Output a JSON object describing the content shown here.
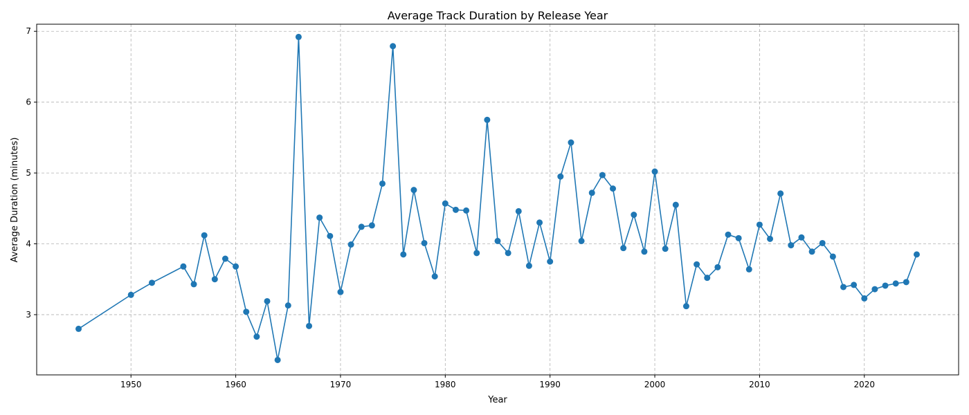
{
  "chart_data": {
    "type": "line",
    "title": "Average Track Duration by Release Year",
    "xlabel": "Year",
    "ylabel": "Average Duration (minutes)",
    "xlim": [
      1941,
      2029
    ],
    "ylim": [
      2.15,
      7.1
    ],
    "xticks": [
      1950,
      1960,
      1970,
      1980,
      1990,
      2000,
      2010,
      2020
    ],
    "yticks": [
      3,
      4,
      5,
      6,
      7
    ],
    "grid": true,
    "marker": "circle",
    "color": "#1f77b4",
    "series": [
      {
        "x": [
          1945,
          1950,
          1952,
          1955,
          1956,
          1957,
          1958,
          1959,
          1960,
          1961,
          1962,
          1963,
          1964,
          1965,
          1966,
          1967,
          1968,
          1969,
          1970,
          1971,
          1972,
          1973,
          1974,
          1975,
          1976,
          1977,
          1978,
          1979,
          1980,
          1981,
          1982,
          1983,
          1984,
          1985,
          1986,
          1987,
          1988,
          1989,
          1990,
          1991,
          1992,
          1993,
          1994,
          1995,
          1996,
          1997,
          1998,
          1999,
          2000,
          2001,
          2002,
          2003,
          2004,
          2005,
          2006,
          2007,
          2008,
          2009,
          2010,
          2011,
          2012,
          2013,
          2014,
          2015,
          2016,
          2017,
          2018,
          2019,
          2020,
          2021,
          2022,
          2023,
          2024,
          2025
        ],
        "y": [
          2.8,
          3.28,
          3.45,
          3.68,
          3.43,
          4.12,
          3.5,
          3.79,
          3.68,
          3.04,
          2.69,
          3.19,
          2.36,
          3.13,
          6.92,
          2.84,
          4.37,
          4.11,
          3.32,
          3.99,
          4.24,
          4.26,
          4.85,
          6.79,
          3.85,
          4.76,
          4.01,
          3.54,
          4.57,
          4.48,
          4.47,
          3.87,
          5.75,
          4.04,
          3.87,
          4.46,
          3.69,
          4.3,
          3.75,
          4.95,
          5.43,
          4.04,
          4.72,
          4.97,
          4.78,
          3.94,
          4.41,
          3.89,
          5.02,
          3.93,
          4.55,
          3.12,
          3.71,
          3.52,
          3.67,
          4.13,
          4.08,
          3.64,
          4.27,
          4.07,
          4.71,
          3.98,
          4.09,
          3.89,
          4.01,
          3.82,
          3.39,
          3.42,
          3.23,
          3.36,
          3.41,
          3.44,
          3.46,
          3.85
        ]
      }
    ]
  }
}
